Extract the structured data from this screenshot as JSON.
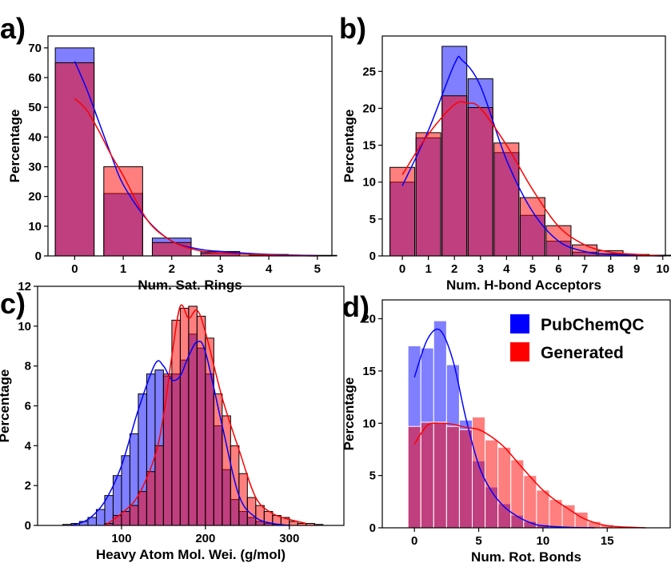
{
  "chart_data": [
    {
      "type": "bar",
      "label": "a)",
      "xlabel": "Num. Sat. Rings",
      "ylabel": "Percentage",
      "x": [
        0,
        1,
        2,
        3,
        4,
        5
      ],
      "xlim": [
        -0.55,
        5.3
      ],
      "ylim": [
        0,
        74
      ],
      "xticks": [
        0,
        1,
        2,
        3,
        4,
        5
      ],
      "yticks": [
        0,
        10,
        20,
        30,
        40,
        50,
        60,
        70
      ],
      "edgecolor": "#000000",
      "series": [
        {
          "color": "#0000ff",
          "values": [
            70,
            21,
            6,
            1.5,
            0.5,
            0.2
          ],
          "kde_x": [
            0,
            0.25,
            0.5,
            0.75,
            1,
            1.5,
            2,
            2.5,
            3,
            4,
            5
          ],
          "kde_values": [
            65.5,
            56,
            45,
            34,
            24,
            12,
            5,
            2.5,
            1.5,
            0.5,
            0.1
          ]
        },
        {
          "color": "#ff0000",
          "values": [
            65,
            30,
            4.5,
            1,
            0.3,
            0.1
          ],
          "kde_x": [
            0,
            0.25,
            0.5,
            0.75,
            1,
            1.5,
            2,
            2.5,
            3,
            4,
            5
          ],
          "kde_values": [
            53,
            49,
            42,
            34,
            27,
            12,
            5,
            2,
            1,
            0.3,
            0
          ]
        }
      ]
    },
    {
      "type": "bar",
      "label": "b)",
      "xlabel": "Num. H-bond Acceptors",
      "ylabel": "Percentage",
      "x": [
        0,
        1,
        2,
        3,
        4,
        5,
        6,
        7,
        8,
        9,
        10
      ],
      "xlim": [
        -0.77,
        10.1
      ],
      "ylim": [
        0,
        29.8
      ],
      "xticks": [
        0,
        1,
        2,
        3,
        4,
        5,
        6,
        7,
        8,
        9,
        10
      ],
      "yticks": [
        0,
        5,
        10,
        15,
        20,
        25
      ],
      "edgecolor": "#000000",
      "series": [
        {
          "color": "#0000ff",
          "values": [
            10,
            16,
            28.4,
            24,
            14,
            5.5,
            2,
            0.5,
            0.3,
            0.1,
            0
          ],
          "kde_x": [
            0,
            1,
            2,
            2.3,
            3,
            4,
            5,
            6,
            7,
            8,
            10
          ],
          "kde_values": [
            9.5,
            17,
            26,
            26.5,
            23,
            13,
            6,
            2,
            0.6,
            0.2,
            0
          ]
        },
        {
          "color": "#ff0000",
          "values": [
            12,
            16.7,
            21.7,
            20.1,
            15.3,
            7.9,
            4.1,
            1.5,
            0.7,
            0.2,
            0.1
          ],
          "kde_x": [
            0,
            1,
            2,
            2.5,
            3,
            4,
            5,
            6,
            7,
            8,
            9,
            10
          ],
          "kde_values": [
            11,
            16.5,
            20.5,
            20.7,
            20,
            15,
            9,
            4,
            1.5,
            0.5,
            0.2,
            0
          ]
        }
      ]
    },
    {
      "type": "histogram",
      "label": "c)",
      "xlabel": "Heavy Atom Mol. Wei. (g/mol)",
      "ylabel": "Percentage",
      "bins": [
        30,
        40,
        50,
        60,
        70,
        80,
        90,
        100,
        110,
        120,
        130,
        140,
        150,
        160,
        170,
        180,
        190,
        200,
        210,
        220,
        230,
        240,
        250,
        260,
        270,
        280,
        290,
        300,
        310,
        320,
        330,
        340
      ],
      "xlim": [
        0,
        365
      ],
      "ylim": [
        0,
        12
      ],
      "xticks": [
        100,
        200,
        300
      ],
      "yticks": [
        0,
        2,
        4,
        6,
        8,
        10,
        12
      ],
      "edgecolor": "#000000",
      "series": [
        {
          "color": "#0000ff",
          "values": [
            0.05,
            0.1,
            0.2,
            0.4,
            0.8,
            1.5,
            2.5,
            3.5,
            4.6,
            6.6,
            7.6,
            7.8,
            7.5,
            7.6,
            8.3,
            9.6,
            8.9,
            7.6,
            5.0,
            2.8,
            1.3,
            0.7,
            0.4,
            0.2,
            0.1,
            0.05,
            0.02,
            0,
            0,
            0,
            0
          ],
          "kde_x": [
            40,
            60,
            80,
            100,
            120,
            140,
            150,
            160,
            170,
            180,
            190,
            200,
            220,
            240,
            260,
            280,
            300
          ],
          "kde_values": [
            0,
            0.3,
            1.2,
            3,
            5.8,
            8.1,
            8.0,
            7.3,
            7.5,
            8.5,
            9.2,
            8.7,
            5,
            1.5,
            0.4,
            0.1,
            0
          ]
        },
        {
          "color": "#ff0000",
          "values": [
            0,
            0,
            0,
            0,
            0,
            0.1,
            0.5,
            0.7,
            1.0,
            1.7,
            2.7,
            4.0,
            7.6,
            10.3,
            10.9,
            11.0,
            10.5,
            9.4,
            6.6,
            5.5,
            4.0,
            2.6,
            1.4,
            1.0,
            0.7,
            0.5,
            0.4,
            0.2,
            0.1,
            0.1,
            0.05
          ],
          "kde_x": [
            80,
            100,
            120,
            140,
            150,
            160,
            170,
            180,
            190,
            200,
            220,
            240,
            260,
            280,
            300,
            320
          ],
          "kde_values": [
            0,
            0.6,
            1.5,
            3.5,
            5.5,
            8.5,
            11.0,
            10.4,
            10.8,
            9.7,
            6.4,
            3.8,
            1.4,
            0.6,
            0.3,
            0.1
          ]
        }
      ]
    },
    {
      "type": "histogram",
      "label": "d)",
      "xlabel": "Num. Rot. Bonds",
      "ylabel": "Percentage",
      "bins": [
        -0.5,
        0.5,
        1.5,
        2.5,
        3.5,
        4.5,
        5.5,
        6.5,
        7.5,
        8.5,
        9.5,
        10.5,
        11.5,
        12.5,
        13.5,
        14.5,
        15.5,
        16.5,
        17.5,
        18.5
      ],
      "xlim": [
        -2.5,
        19.9
      ],
      "ylim": [
        0,
        21.8
      ],
      "xticks": [
        0,
        5,
        10,
        15
      ],
      "yticks": [
        0,
        5,
        10,
        15,
        20
      ],
      "edgecolor": "#ffffff",
      "legend": "upper right",
      "series": [
        {
          "name": "PubChemQC",
          "color": "#0000ff",
          "values": [
            17.4,
            17.2,
            19.8,
            15.6,
            10.3,
            6.4,
            3.9,
            2.3,
            1.2,
            0.6,
            0.3,
            0.15,
            0.08,
            0.03,
            0,
            0,
            0,
            0,
            0
          ],
          "kde_x": [
            0,
            1,
            2,
            3,
            4,
            5,
            6,
            7,
            8,
            9,
            10,
            12,
            14
          ],
          "kde_values": [
            14.4,
            18,
            18.9,
            16,
            10.5,
            6,
            3.5,
            2,
            1.1,
            0.5,
            0.2,
            0.05,
            0
          ]
        },
        {
          "name": "Generated",
          "color": "#ff0000",
          "values": [
            9.7,
            10.1,
            10.1,
            9.7,
            9.4,
            10.6,
            8.4,
            7.7,
            6.5,
            5.0,
            3.6,
            2.7,
            2.2,
            1.5,
            0.6,
            0.3,
            0.1,
            0.05,
            0.02
          ],
          "kde_x": [
            0,
            1,
            2,
            3,
            4,
            5,
            6,
            7,
            8,
            9,
            10,
            11,
            12,
            13,
            14,
            15,
            16,
            17,
            18
          ],
          "kde_values": [
            8,
            9.8,
            10,
            9.9,
            9.6,
            9.4,
            8.7,
            7.7,
            6.3,
            4.9,
            3.6,
            2.6,
            1.8,
            1,
            0.5,
            0.2,
            0.1,
            0.05,
            0
          ]
        }
      ]
    }
  ]
}
